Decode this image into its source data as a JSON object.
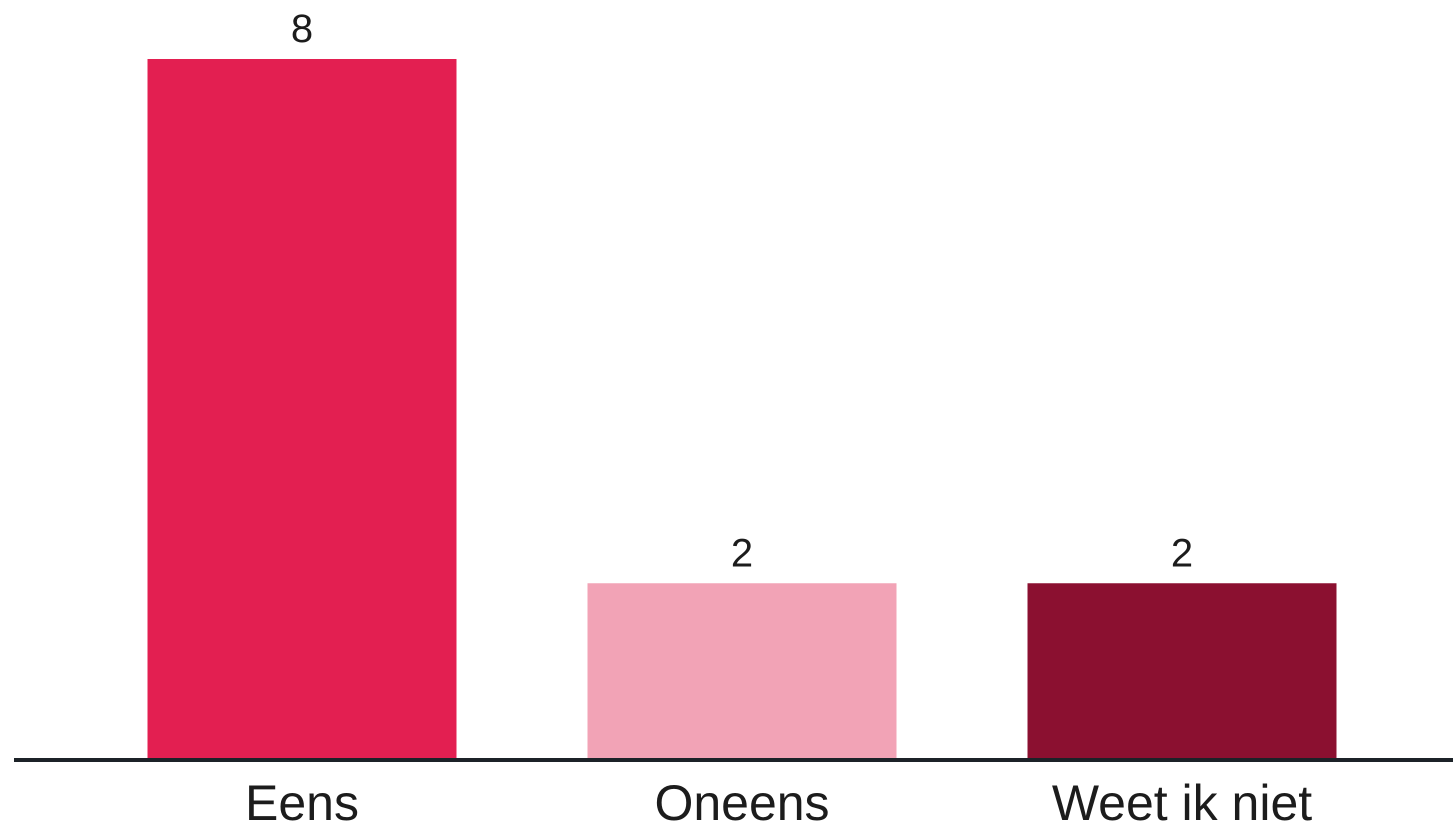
{
  "chart_data": {
    "type": "bar",
    "categories": [
      "Eens",
      "Oneens",
      "Weet ik niet"
    ],
    "values": [
      8,
      2,
      2
    ],
    "colors": [
      "#e31f51",
      "#f2a3b6",
      "#8b1030"
    ],
    "value_labels": [
      "8",
      "2",
      "2"
    ],
    "ylim": [
      0,
      8
    ],
    "grid": false,
    "legend": "none",
    "title": "",
    "xlabel": "",
    "ylabel": ""
  }
}
